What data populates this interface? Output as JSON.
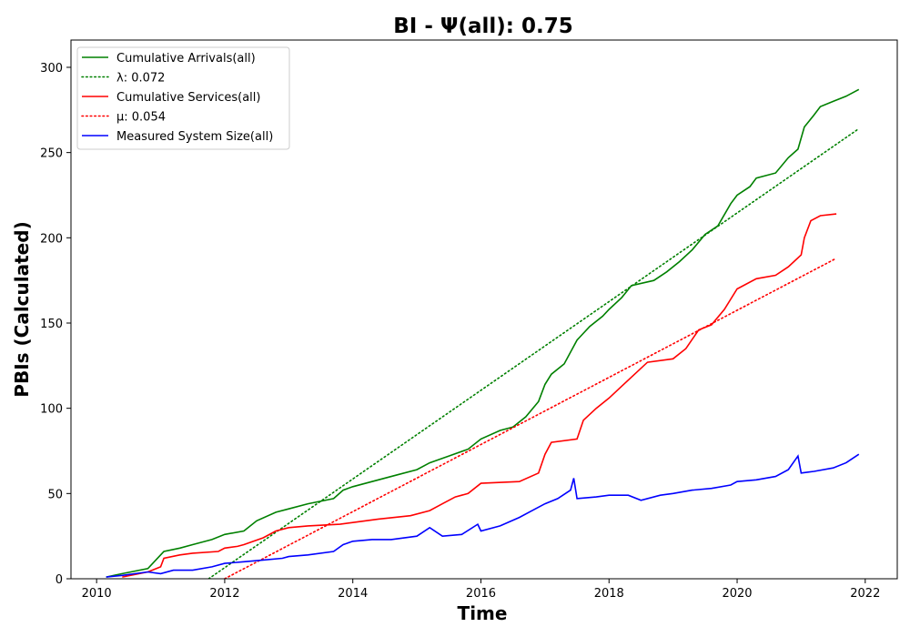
{
  "chart_data": {
    "type": "line",
    "title": "BI -  Ψ(all): 0.75",
    "xlabel": "Time",
    "ylabel": "PBIs (Calculated)",
    "xlim": [
      2009.6,
      2022.5
    ],
    "ylim": [
      0,
      316
    ],
    "xticks": [
      2010,
      2012,
      2014,
      2016,
      2018,
      2020,
      2022
    ],
    "yticks": [
      0,
      50,
      100,
      150,
      200,
      250,
      300
    ],
    "grid": false,
    "legend_position": "top-left",
    "colors": {
      "green": "#008000",
      "red": "#ff0000",
      "blue": "#0000ff"
    },
    "series": [
      {
        "name": "Cumulative Arrivals(all)",
        "style": "solid",
        "color": "#008000",
        "points": [
          [
            2010.15,
            1
          ],
          [
            2010.4,
            3
          ],
          [
            2010.8,
            6
          ],
          [
            2011.0,
            14
          ],
          [
            2011.05,
            16
          ],
          [
            2011.3,
            18
          ],
          [
            2011.5,
            20
          ],
          [
            2011.8,
            23
          ],
          [
            2012.0,
            26
          ],
          [
            2012.3,
            28
          ],
          [
            2012.5,
            34
          ],
          [
            2012.8,
            39
          ],
          [
            2013.0,
            41
          ],
          [
            2013.3,
            44
          ],
          [
            2013.7,
            47
          ],
          [
            2013.85,
            52
          ],
          [
            2014.0,
            54
          ],
          [
            2014.3,
            57
          ],
          [
            2014.7,
            61
          ],
          [
            2015.0,
            64
          ],
          [
            2015.2,
            68
          ],
          [
            2015.5,
            72
          ],
          [
            2015.8,
            76
          ],
          [
            2016.0,
            82
          ],
          [
            2016.3,
            87
          ],
          [
            2016.5,
            89
          ],
          [
            2016.7,
            95
          ],
          [
            2016.9,
            104
          ],
          [
            2017.0,
            114
          ],
          [
            2017.1,
            120
          ],
          [
            2017.3,
            126
          ],
          [
            2017.5,
            140
          ],
          [
            2017.7,
            148
          ],
          [
            2017.9,
            154
          ],
          [
            2018.0,
            158
          ],
          [
            2018.2,
            165
          ],
          [
            2018.35,
            172
          ],
          [
            2018.7,
            175
          ],
          [
            2018.9,
            180
          ],
          [
            2019.1,
            186
          ],
          [
            2019.3,
            193
          ],
          [
            2019.5,
            202
          ],
          [
            2019.7,
            207
          ],
          [
            2019.9,
            220
          ],
          [
            2020.0,
            225
          ],
          [
            2020.2,
            230
          ],
          [
            2020.3,
            235
          ],
          [
            2020.6,
            238
          ],
          [
            2020.8,
            247
          ],
          [
            2020.95,
            252
          ],
          [
            2021.05,
            265
          ],
          [
            2021.2,
            272
          ],
          [
            2021.3,
            277
          ],
          [
            2021.5,
            280
          ],
          [
            2021.7,
            283
          ],
          [
            2021.9,
            287
          ]
        ]
      },
      {
        "name": "λ: 0.072",
        "style": "dotted",
        "color": "#008000",
        "points": [
          [
            2011.75,
            0
          ],
          [
            2021.9,
            264
          ]
        ]
      },
      {
        "name": "Cumulative Services(all)",
        "style": "solid",
        "color": "#ff0000",
        "points": [
          [
            2010.4,
            1
          ],
          [
            2010.8,
            4
          ],
          [
            2011.0,
            7
          ],
          [
            2011.05,
            12
          ],
          [
            2011.3,
            14
          ],
          [
            2011.5,
            15
          ],
          [
            2011.9,
            16
          ],
          [
            2012.0,
            18
          ],
          [
            2012.2,
            19
          ],
          [
            2012.3,
            20
          ],
          [
            2012.6,
            24
          ],
          [
            2012.8,
            28
          ],
          [
            2013.0,
            30
          ],
          [
            2013.3,
            31
          ],
          [
            2013.8,
            32
          ],
          [
            2014.0,
            33
          ],
          [
            2014.4,
            35
          ],
          [
            2014.9,
            37
          ],
          [
            2015.2,
            40
          ],
          [
            2015.4,
            44
          ],
          [
            2015.6,
            48
          ],
          [
            2015.8,
            50
          ],
          [
            2016.0,
            56
          ],
          [
            2016.6,
            57
          ],
          [
            2016.9,
            62
          ],
          [
            2017.0,
            73
          ],
          [
            2017.1,
            80
          ],
          [
            2017.5,
            82
          ],
          [
            2017.6,
            93
          ],
          [
            2017.8,
            100
          ],
          [
            2018.0,
            106
          ],
          [
            2018.2,
            113
          ],
          [
            2018.4,
            120
          ],
          [
            2018.6,
            127
          ],
          [
            2019.0,
            129
          ],
          [
            2019.2,
            135
          ],
          [
            2019.4,
            146
          ],
          [
            2019.6,
            149
          ],
          [
            2019.8,
            158
          ],
          [
            2020.0,
            170
          ],
          [
            2020.3,
            176
          ],
          [
            2020.6,
            178
          ],
          [
            2020.8,
            183
          ],
          [
            2021.0,
            190
          ],
          [
            2021.05,
            200
          ],
          [
            2021.15,
            210
          ],
          [
            2021.3,
            213
          ],
          [
            2021.55,
            214
          ]
        ]
      },
      {
        "name": "μ: 0.054",
        "style": "dotted",
        "color": "#ff0000",
        "points": [
          [
            2012.0,
            0
          ],
          [
            2021.55,
            188
          ]
        ]
      },
      {
        "name": "Measured System Size(all)",
        "style": "solid",
        "color": "#0000ff",
        "points": [
          [
            2010.15,
            1
          ],
          [
            2010.4,
            2
          ],
          [
            2010.8,
            4
          ],
          [
            2011.0,
            3
          ],
          [
            2011.2,
            5
          ],
          [
            2011.5,
            5
          ],
          [
            2011.8,
            7
          ],
          [
            2012.0,
            9
          ],
          [
            2012.3,
            10
          ],
          [
            2012.6,
            11
          ],
          [
            2012.9,
            12
          ],
          [
            2013.0,
            13
          ],
          [
            2013.3,
            14
          ],
          [
            2013.7,
            16
          ],
          [
            2013.85,
            20
          ],
          [
            2014.0,
            22
          ],
          [
            2014.3,
            23
          ],
          [
            2014.6,
            23
          ],
          [
            2015.0,
            25
          ],
          [
            2015.2,
            30
          ],
          [
            2015.4,
            25
          ],
          [
            2015.7,
            26
          ],
          [
            2015.95,
            32
          ],
          [
            2016.0,
            28
          ],
          [
            2016.3,
            31
          ],
          [
            2016.6,
            36
          ],
          [
            2016.8,
            40
          ],
          [
            2017.0,
            44
          ],
          [
            2017.2,
            47
          ],
          [
            2017.4,
            52
          ],
          [
            2017.45,
            59
          ],
          [
            2017.5,
            47
          ],
          [
            2017.8,
            48
          ],
          [
            2018.0,
            49
          ],
          [
            2018.3,
            49
          ],
          [
            2018.5,
            46
          ],
          [
            2018.8,
            49
          ],
          [
            2019.0,
            50
          ],
          [
            2019.3,
            52
          ],
          [
            2019.6,
            53
          ],
          [
            2019.9,
            55
          ],
          [
            2020.0,
            57
          ],
          [
            2020.3,
            58
          ],
          [
            2020.6,
            60
          ],
          [
            2020.8,
            64
          ],
          [
            2020.95,
            72
          ],
          [
            2021.0,
            62
          ],
          [
            2021.2,
            63
          ],
          [
            2021.5,
            65
          ],
          [
            2021.7,
            68
          ],
          [
            2021.9,
            73
          ]
        ]
      }
    ]
  }
}
